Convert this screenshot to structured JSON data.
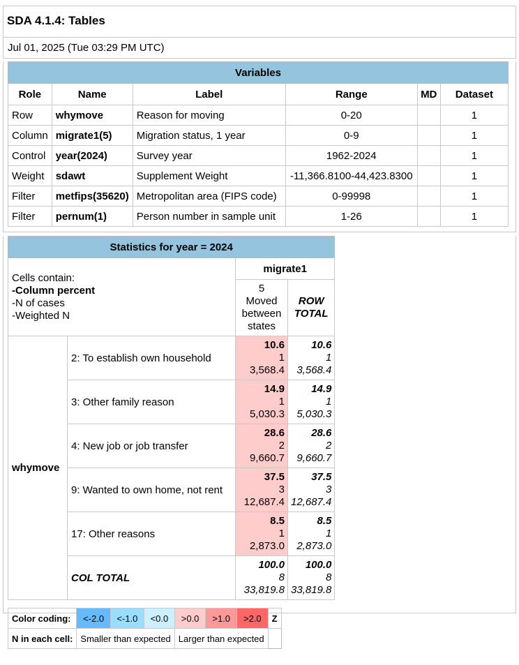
{
  "header": {
    "title": "SDA 4.1.4: Tables",
    "date": "Jul 01, 2025 (Tue 03:29 PM UTC)"
  },
  "variables": {
    "caption": "Variables",
    "columns": [
      "Role",
      "Name",
      "Label",
      "Range",
      "MD",
      "Dataset"
    ],
    "rows": [
      {
        "role": "Row",
        "name": "whymove",
        "label": "Reason for moving",
        "range": "0-20",
        "md": "",
        "dataset": "1"
      },
      {
        "role": "Column",
        "name": "migrate1(5)",
        "label": "Migration status, 1 year",
        "range": "0-9",
        "md": "",
        "dataset": "1"
      },
      {
        "role": "Control",
        "name": "year(2024)",
        "label": "Survey year",
        "range": "1962-2024",
        "md": "",
        "dataset": "1"
      },
      {
        "role": "Weight",
        "name": "sdawt",
        "label": "Supplement Weight",
        "range": "-11,366.8100-44,423.8300",
        "md": "",
        "dataset": "1"
      },
      {
        "role": "Filter",
        "name": "metfips(35620)",
        "label": "Metropolitan area (FIPS code)",
        "range": "0-99998",
        "md": "",
        "dataset": "1"
      },
      {
        "role": "Filter",
        "name": "pernum(1)",
        "label": "Person number in sample unit",
        "range": "1-26",
        "md": "",
        "dataset": "1"
      }
    ]
  },
  "stats": {
    "caption": "Statistics for year = 2024",
    "cells_contain": {
      "heading": "Cells contain:",
      "items": [
        "-Column percent",
        "-N of cases",
        "-Weighted N"
      ]
    },
    "column_var": "migrate1",
    "column_header": {
      "code": "5",
      "l1": "Moved",
      "l2": "between",
      "l3": "states"
    },
    "row_total_header": {
      "l1": "ROW",
      "l2": "TOTAL"
    },
    "row_var": "whymove",
    "rows": [
      {
        "label": "2: To establish own household",
        "pct": "10.6",
        "n": "1",
        "wn": "3,568.4",
        "tpct": "10.6",
        "tn": "1",
        "twn": "3,568.4"
      },
      {
        "label": "3: Other family reason",
        "pct": "14.9",
        "n": "1",
        "wn": "5,030.3",
        "tpct": "14.9",
        "tn": "1",
        "twn": "5,030.3"
      },
      {
        "label": "4: New job or job transfer",
        "pct": "28.6",
        "n": "2",
        "wn": "9,660.7",
        "tpct": "28.6",
        "tn": "2",
        "twn": "9,660.7"
      },
      {
        "label": "9: Wanted to own home, not rent",
        "pct": "37.5",
        "n": "3",
        "wn": "12,687.4",
        "tpct": "37.5",
        "tn": "3",
        "twn": "12,687.4"
      },
      {
        "label": "17: Other reasons",
        "pct": "8.5",
        "n": "1",
        "wn": "2,873.0",
        "tpct": "8.5",
        "tn": "1",
        "twn": "2,873.0"
      }
    ],
    "col_total": {
      "label": "COL TOTAL",
      "pct": "100.0",
      "n": "8",
      "wn": "33,819.8",
      "tpct": "100.0",
      "tn": "8",
      "twn": "33,819.8"
    },
    "cell_color": "#ffcccc"
  },
  "legend": {
    "color_label": "Color coding:",
    "swatches": [
      {
        "text": "<-2.0",
        "color": "#66bbff"
      },
      {
        "text": "<-1.0",
        "color": "#99ddff"
      },
      {
        "text": "<0.0",
        "color": "#ccf0ff"
      },
      {
        "text": ">0.0",
        "color": "#ffcccc"
      },
      {
        "text": ">1.0",
        "color": "#ff9999"
      },
      {
        "text": ">2.0",
        "color": "#ff6666"
      }
    ],
    "z": "Z",
    "n_label": "N in each cell:",
    "smaller": "Smaller than expected",
    "larger": "Larger than expected"
  }
}
